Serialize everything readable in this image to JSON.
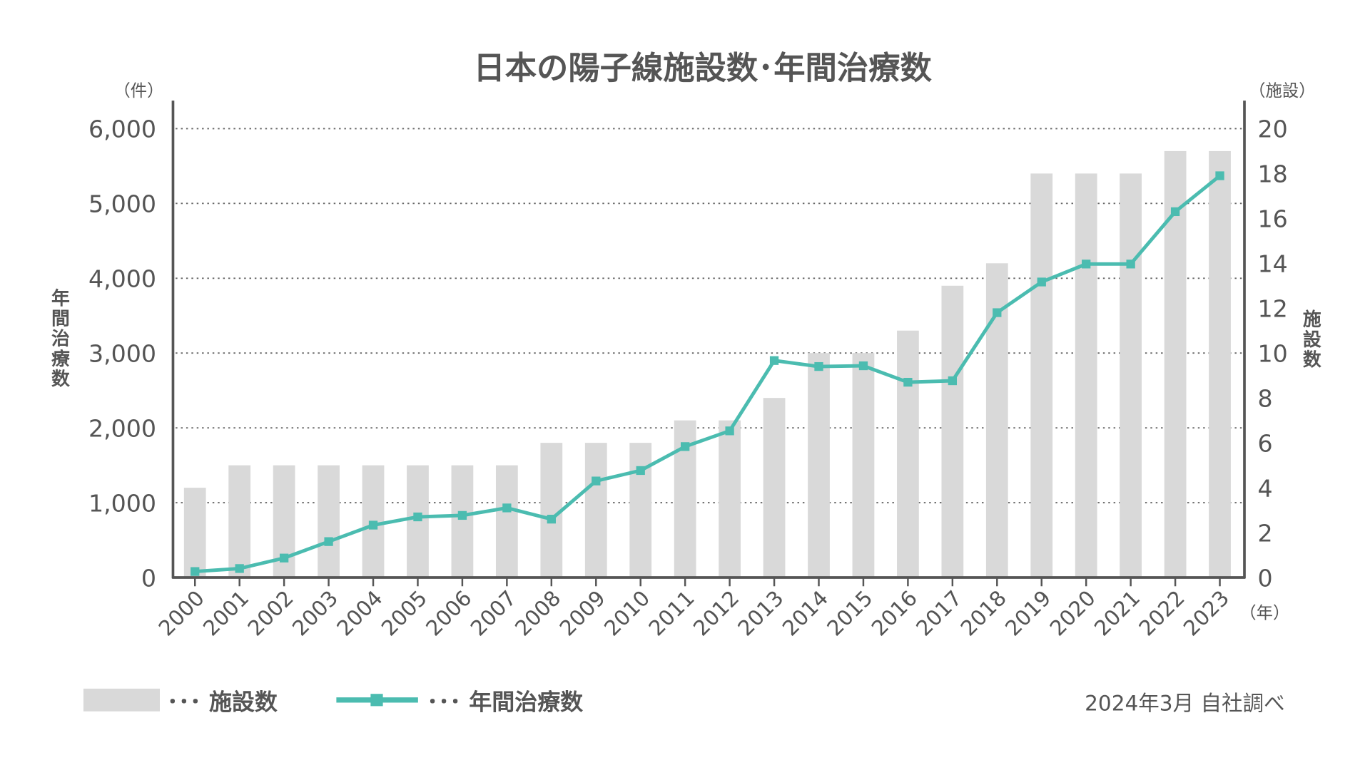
{
  "chart_data": {
    "type": "bar+line",
    "title": "日本の陽子線施設数･年間治療数",
    "categories": [
      "2000",
      "2001",
      "2002",
      "2003",
      "2004",
      "2005",
      "2006",
      "2007",
      "2008",
      "2009",
      "2010",
      "2011",
      "2012",
      "2013",
      "2014",
      "2015",
      "2016",
      "2017",
      "2018",
      "2019",
      "2020",
      "2021",
      "2022",
      "2023"
    ],
    "series": [
      {
        "name": "施設数",
        "type": "bar",
        "axis": "right",
        "color": "#d9d9d9",
        "values": [
          4,
          5,
          5,
          5,
          5,
          5,
          5,
          5,
          6,
          6,
          6,
          7,
          7,
          8,
          10,
          10,
          11,
          13,
          14,
          18,
          18,
          18,
          19,
          19
        ]
      },
      {
        "name": "年間治療数",
        "type": "line",
        "axis": "left",
        "color": "#4bbcb0",
        "values": [
          80,
          120,
          260,
          480,
          700,
          810,
          830,
          930,
          780,
          1290,
          1430,
          1750,
          1960,
          2900,
          2820,
          2830,
          2610,
          2630,
          3540,
          3950,
          4190,
          4190,
          4890,
          5370
        ]
      }
    ],
    "left_axis": {
      "label": "年間治療数",
      "unit": "（件）",
      "ylim": [
        0,
        6000
      ],
      "ticks": [
        "0",
        "1,000",
        "2,000",
        "3,000",
        "4,000",
        "5,000",
        "6,000"
      ]
    },
    "right_axis": {
      "label": "施設数",
      "unit": "（施設）",
      "ylim": [
        0,
        20
      ],
      "ticks": [
        "0",
        "2",
        "4",
        "6",
        "8",
        "10",
        "12",
        "14",
        "16",
        "18",
        "20"
      ]
    },
    "x_unit": "（年）",
    "grid": true,
    "legend": {
      "placement": "bottom-left",
      "bar_label": "･･･ 施設数",
      "line_label": "･･･ 年間治療数"
    },
    "source": "2024年3月 自社調べ"
  }
}
